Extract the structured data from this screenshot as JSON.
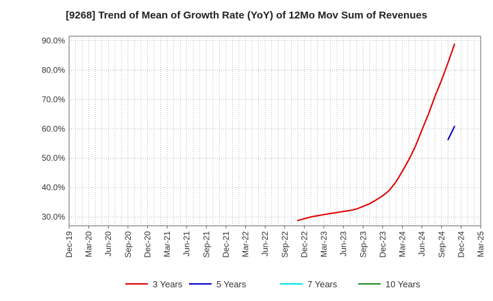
{
  "chart_data": {
    "type": "line",
    "title": "[9268]  Trend of Mean of Growth Rate (YoY) of 12Mo Mov Sum of Revenues",
    "xlabel": "",
    "ylabel": "",
    "ylim": [
      27,
      91.5
    ],
    "yticks": [
      30,
      40,
      50,
      60,
      70,
      80,
      90
    ],
    "ytick_labels": [
      "30.0%",
      "40.0%",
      "50.0%",
      "60.0%",
      "70.0%",
      "80.0%",
      "90.0%"
    ],
    "x_categories": [
      "Dec-19",
      "Mar-20",
      "Jun-20",
      "Sep-20",
      "Dec-20",
      "Mar-21",
      "Jun-21",
      "Sep-21",
      "Dec-21",
      "Mar-22",
      "Jun-22",
      "Sep-22",
      "Dec-22",
      "Mar-23",
      "Jun-23",
      "Sep-23",
      "Dec-23",
      "Mar-24",
      "Jun-24",
      "Sep-24",
      "Dec-24",
      "Mar-25"
    ],
    "grid": true,
    "legend_position": "bottom",
    "series": [
      {
        "name": "3 Years",
        "color": "#dd0000",
        "points": [
          [
            "Nov-22",
            28.8
          ],
          [
            "Dec-22",
            29.4
          ],
          [
            "Jan-23",
            30.0
          ],
          [
            "Feb-23",
            30.4
          ],
          [
            "Mar-23",
            30.8
          ],
          [
            "Apr-23",
            31.2
          ],
          [
            "May-23",
            31.5
          ],
          [
            "Jun-23",
            31.9
          ],
          [
            "Jul-23",
            32.2
          ],
          [
            "Aug-23",
            32.7
          ],
          [
            "Sep-23",
            33.6
          ],
          [
            "Oct-23",
            34.5
          ],
          [
            "Nov-23",
            35.8
          ],
          [
            "Dec-23",
            37.2
          ],
          [
            "Jan-24",
            39.0
          ],
          [
            "Feb-24",
            41.8
          ],
          [
            "Mar-24",
            45.5
          ],
          [
            "Apr-24",
            49.5
          ],
          [
            "May-24",
            54.0
          ],
          [
            "Jun-24",
            59.5
          ],
          [
            "Jul-24",
            65.0
          ],
          [
            "Aug-24",
            71.0
          ],
          [
            "Sep-24",
            76.5
          ],
          [
            "Oct-24",
            82.5
          ],
          [
            "Nov-24",
            88.8
          ]
        ]
      },
      {
        "name": "5 Years",
        "color": "#0000cc",
        "points": [
          [
            "Oct-24",
            56.3
          ],
          [
            "Nov-24",
            60.8
          ]
        ]
      },
      {
        "name": "7 Years",
        "color": "#00e5ee",
        "points": []
      },
      {
        "name": "10 Years",
        "color": "#228b22",
        "points": []
      }
    ]
  }
}
